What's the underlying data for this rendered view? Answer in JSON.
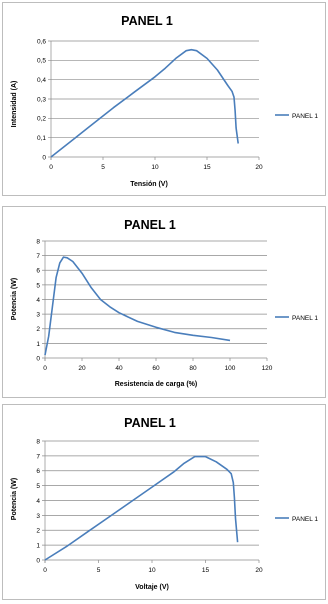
{
  "colors": {
    "series": "#4a7ebb",
    "grid": "#8c8c8c",
    "axis": "#8c8c8c",
    "text": "#000000"
  },
  "chart_data": [
    {
      "type": "line",
      "title": "PANEL 1",
      "xlabel": "Tensión (V)",
      "ylabel": "Intensidad (A)",
      "xlim": [
        0,
        20
      ],
      "ylim": [
        0,
        0.6
      ],
      "xticks": [
        0,
        5,
        10,
        15,
        20
      ],
      "yticks": [
        0,
        0.1,
        0.2,
        0.3,
        0.4,
        0.5,
        0.6
      ],
      "xtick_labels": [
        "0",
        "5",
        "10",
        "15",
        "20"
      ],
      "ytick_labels": [
        "0",
        "0,1",
        "0,2",
        "0,3",
        "0,4",
        "0,5",
        "0,6"
      ],
      "grid": "horizontal",
      "legend_position": "right",
      "series": [
        {
          "name": "PANEL 1",
          "x": [
            0,
            2,
            4,
            6,
            8,
            10,
            11,
            12,
            13,
            13.5,
            14,
            15,
            16,
            17,
            17.4,
            17.6,
            17.7,
            17.8,
            18
          ],
          "y": [
            0,
            0.085,
            0.17,
            0.255,
            0.335,
            0.415,
            0.46,
            0.51,
            0.55,
            0.555,
            0.55,
            0.51,
            0.45,
            0.37,
            0.34,
            0.31,
            0.24,
            0.15,
            0.07
          ]
        }
      ]
    },
    {
      "type": "line",
      "title": "PANEL 1",
      "xlabel": "Resistencia de carga (%)",
      "ylabel": "Potencia (W)",
      "xlim": [
        0,
        120
      ],
      "ylim": [
        0,
        8
      ],
      "xticks": [
        0,
        20,
        40,
        60,
        80,
        100,
        120
      ],
      "yticks": [
        0,
        1,
        2,
        3,
        4,
        5,
        6,
        7,
        8
      ],
      "xtick_labels": [
        "0",
        "20",
        "40",
        "60",
        "80",
        "100",
        "120"
      ],
      "ytick_labels": [
        "0",
        "1",
        "2",
        "3",
        "4",
        "5",
        "6",
        "7",
        "8"
      ],
      "grid": "horizontal",
      "legend_position": "right",
      "series": [
        {
          "name": "PANEL 1",
          "x": [
            0,
            2,
            4,
            6,
            8,
            10,
            12,
            15,
            20,
            25,
            30,
            35,
            40,
            50,
            60,
            70,
            80,
            90,
            100
          ],
          "y": [
            0.2,
            1.5,
            3.5,
            5.5,
            6.5,
            6.9,
            6.85,
            6.6,
            5.8,
            4.8,
            4.0,
            3.5,
            3.1,
            2.5,
            2.1,
            1.75,
            1.55,
            1.4,
            1.2
          ]
        }
      ]
    },
    {
      "type": "line",
      "title": "PANEL 1",
      "xlabel": "Voltaje (V)",
      "ylabel": "Potencia (W)",
      "xlim": [
        0,
        20
      ],
      "ylim": [
        0,
        8
      ],
      "xticks": [
        0,
        5,
        10,
        15,
        20
      ],
      "yticks": [
        0,
        1,
        2,
        3,
        4,
        5,
        6,
        7,
        8
      ],
      "xtick_labels": [
        "0",
        "5",
        "10",
        "15",
        "20"
      ],
      "ytick_labels": [
        "0",
        "1",
        "2",
        "3",
        "4",
        "5",
        "6",
        "7",
        "8"
      ],
      "grid": "horizontal",
      "legend_position": "right",
      "series": [
        {
          "name": "PANEL 1",
          "x": [
            0,
            2,
            4,
            6,
            8,
            10,
            12,
            13,
            14,
            15,
            16,
            17,
            17.4,
            17.6,
            17.7,
            17.8,
            18
          ],
          "y": [
            0,
            0.9,
            1.9,
            2.9,
            3.9,
            4.9,
            5.9,
            6.5,
            6.95,
            6.95,
            6.6,
            6.1,
            5.8,
            5.2,
            4.2,
            2.8,
            1.2
          ]
        }
      ]
    }
  ]
}
